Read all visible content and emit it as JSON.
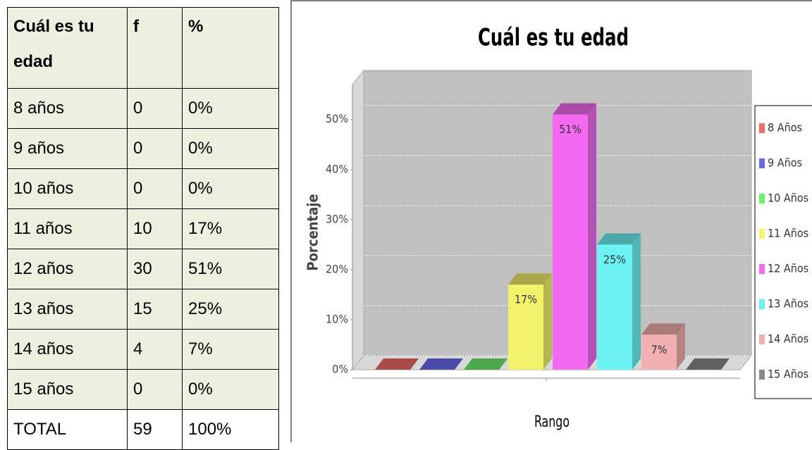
{
  "table": {
    "header": [
      "Cuál es tu edad",
      "f",
      "%"
    ],
    "rows": [
      [
        "8 años",
        "0",
        "0%"
      ],
      [
        "9 años",
        "0",
        "0%"
      ],
      [
        "10 años",
        "0",
        "0%"
      ],
      [
        "11 años",
        "10",
        "17%"
      ],
      [
        "12 años",
        "30",
        "51%"
      ],
      [
        "13 años",
        "15",
        "25%"
      ],
      [
        "14 años",
        "4",
        "7%"
      ],
      [
        "15 años",
        "0",
        "0%"
      ],
      [
        "TOTAL",
        "59",
        "100%"
      ]
    ]
  },
  "chart_data": {
    "type": "bar3d",
    "title": "Cuál es tu edad",
    "y_label": "Porcentaje",
    "x_label": "Rango",
    "series": [
      {
        "name": "8 Años",
        "color": "#f26b6b",
        "values": [
          0
        ]
      },
      {
        "name": "9 Años",
        "color": "#6b6bf2",
        "values": [
          0
        ]
      },
      {
        "name": "10 Años",
        "color": "#6bf26b",
        "values": [
          0
        ]
      },
      {
        "name": "11 Años",
        "color": "#f2f26b",
        "values": [
          17
        ],
        "value_labels": [
          "17%"
        ]
      },
      {
        "name": "12 Años",
        "color": "#f26bf2",
        "values": [
          51
        ],
        "value_labels": [
          "51%"
        ]
      },
      {
        "name": "13 Años",
        "color": "#6bf2f2",
        "values": [
          25
        ],
        "value_labels": [
          "25%"
        ]
      },
      {
        "name": "14 Años",
        "color": "#f2b0b0",
        "values": [
          7
        ],
        "value_labels": [
          "7%"
        ]
      },
      {
        "name": "15 Años",
        "color": "#8a8a8a",
        "values": [
          0
        ]
      }
    ],
    "ylim": [
      0,
      57
    ],
    "yticks": [
      {
        "value": 0,
        "label": "0%"
      },
      {
        "value": 10,
        "label": "10%"
      },
      {
        "value": 20,
        "label": "20%"
      },
      {
        "value": 30,
        "label": "30%"
      },
      {
        "value": 40,
        "label": "40%"
      },
      {
        "value": 50,
        "label": "50%"
      }
    ],
    "grid": true,
    "legend": "right"
  }
}
